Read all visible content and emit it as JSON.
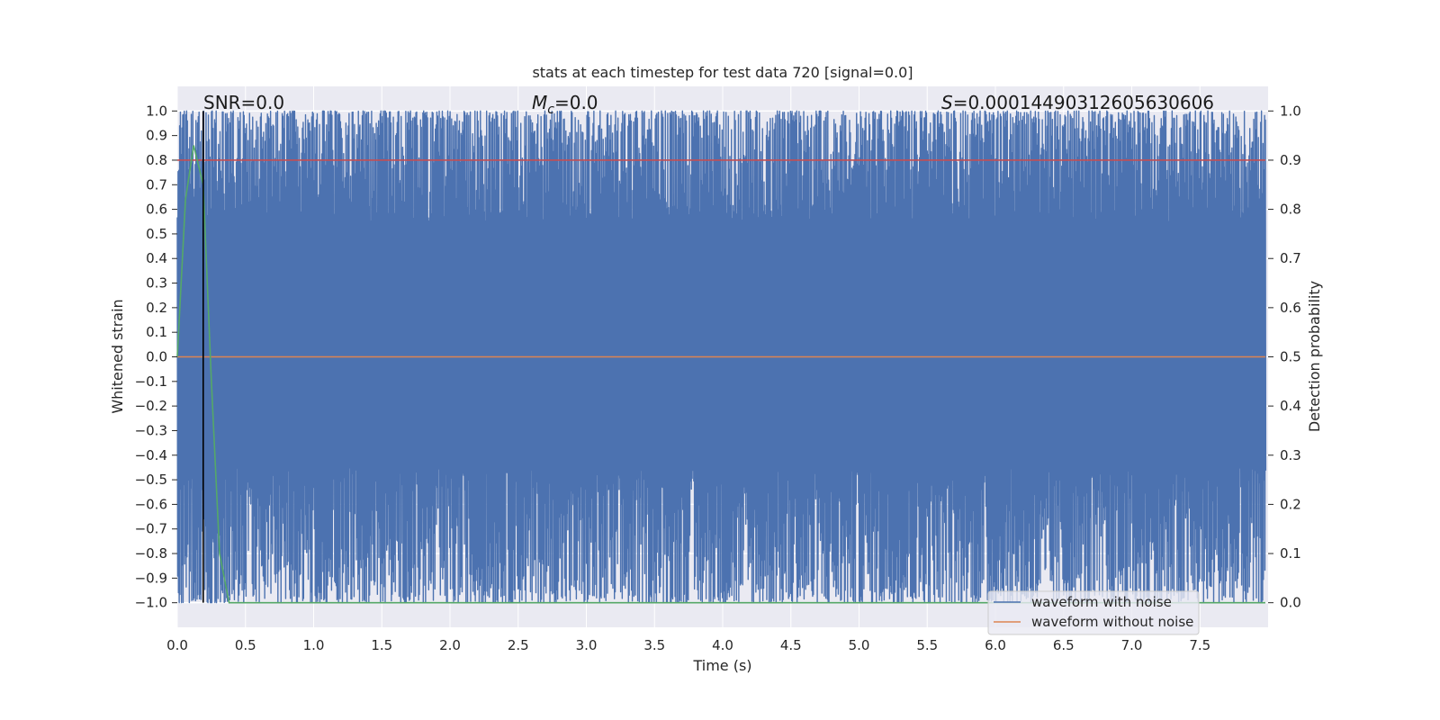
{
  "chart_data": {
    "type": "line",
    "title": "stats at each timestep for test data 720 [signal=0.0]",
    "xlabel": "Time (s)",
    "ylabel_left": "Whitened strain",
    "ylabel_right": "Detection probability",
    "xlim": [
      0.0,
      8.0
    ],
    "ylim_left": [
      -1.1,
      1.1
    ],
    "ylim_right": [
      -0.05,
      1.05
    ],
    "xticks": [
      "0.0",
      "0.5",
      "1.0",
      "1.5",
      "2.0",
      "2.5",
      "3.0",
      "3.5",
      "4.0",
      "4.5",
      "5.0",
      "5.5",
      "6.0",
      "6.5",
      "7.0",
      "7.5"
    ],
    "yticks_left": [
      "1.0",
      "0.9",
      "0.8",
      "0.7",
      "0.6",
      "0.5",
      "0.4",
      "0.3",
      "0.2",
      "0.1",
      "0.0",
      "−0.1",
      "−0.2",
      "−0.3",
      "−0.4",
      "−0.5",
      "−0.6",
      "−0.7",
      "−0.8",
      "−0.9",
      "−1.0"
    ],
    "yticks_right": [
      "1.0",
      "0.9",
      "0.8",
      "0.7",
      "0.6",
      "0.5",
      "0.4",
      "0.3",
      "0.2",
      "0.1",
      "0.0"
    ],
    "grid": true,
    "legend_placement": "lower-right",
    "series": [
      {
        "name": "waveform with noise",
        "axis": "left",
        "color": "#4c72b0",
        "description_range": [
          -1.0,
          1.0
        ]
      },
      {
        "name": "waveform without noise",
        "axis": "left",
        "color": "#dd8452",
        "x": [
          0.0,
          7.98
        ],
        "y": [
          0.0,
          0.0
        ]
      },
      {
        "axis": "right",
        "color": "#55a868",
        "x": [
          0.0,
          0.06,
          0.12,
          0.19,
          0.25,
          0.31,
          0.38,
          0.5,
          1.0,
          2.0,
          3.0,
          4.0,
          5.0,
          6.0,
          7.0,
          7.98
        ],
        "y": [
          0.5,
          0.82,
          0.93,
          0.85,
          0.45,
          0.1,
          0.0,
          0.0,
          0.0,
          0.0,
          0.0,
          0.0,
          0.0,
          0.0,
          0.0,
          0.0
        ]
      },
      {
        "axis": "right",
        "color": "#c44e52",
        "x": [
          0.0,
          7.98
        ],
        "y": [
          0.9,
          0.9
        ]
      }
    ],
    "vline": {
      "x": 0.19,
      "color": "#000000"
    },
    "annotations": {
      "snr": "SNR=0.0",
      "mc_symbol": "M",
      "mc_sub": "c",
      "mc_value": "=0.0",
      "s_symbol": "S",
      "s_value": "=0.00014490312605630606"
    }
  }
}
